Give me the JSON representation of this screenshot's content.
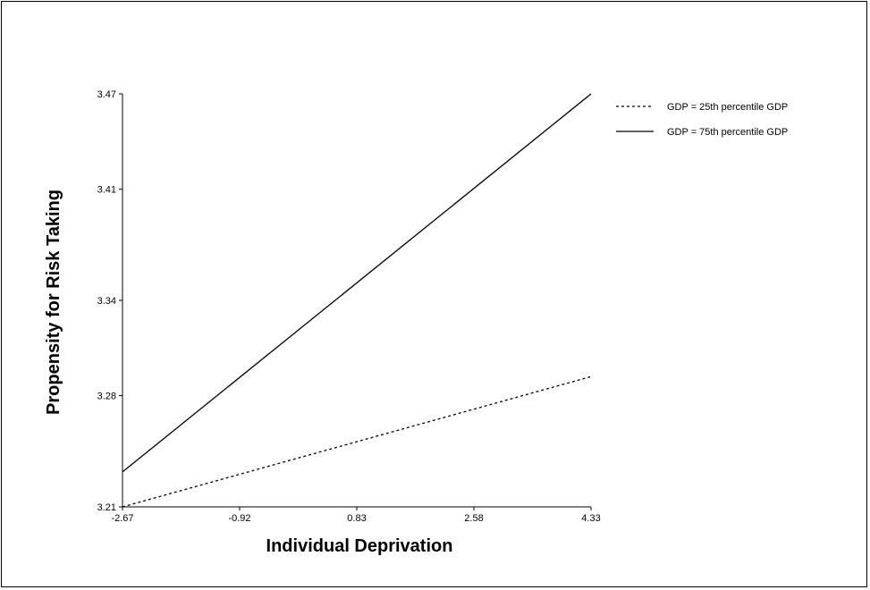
{
  "chart_data": {
    "type": "line",
    "xlabel": "Individual Deprivation",
    "ylabel": "Propensity for Risk Taking",
    "xlim": [
      -2.67,
      4.33
    ],
    "ylim": [
      3.21,
      3.47
    ],
    "x_ticks": [
      "-2.67",
      "-0.92",
      "0.83",
      "2.58",
      "4.33"
    ],
    "y_ticks": [
      "3.21",
      "3.28",
      "3.34",
      "3.41",
      "3.47"
    ],
    "x_tick_values": [
      -2.67,
      -0.92,
      0.83,
      2.58,
      4.33
    ],
    "y_tick_values": [
      3.21,
      3.28,
      3.34,
      3.41,
      3.47
    ],
    "grid": false,
    "legend_position": "top-right",
    "series": [
      {
        "name": "GDP = 25th percentile GDP",
        "style": "dashed",
        "color": "#000000",
        "x": [
          -2.67,
          4.33
        ],
        "y": [
          3.21,
          3.292
        ]
      },
      {
        "name": "GDP = 75th percentile GDP",
        "style": "solid",
        "color": "#000000",
        "x": [
          -2.67,
          4.33
        ],
        "y": [
          3.232,
          3.47
        ]
      }
    ]
  }
}
